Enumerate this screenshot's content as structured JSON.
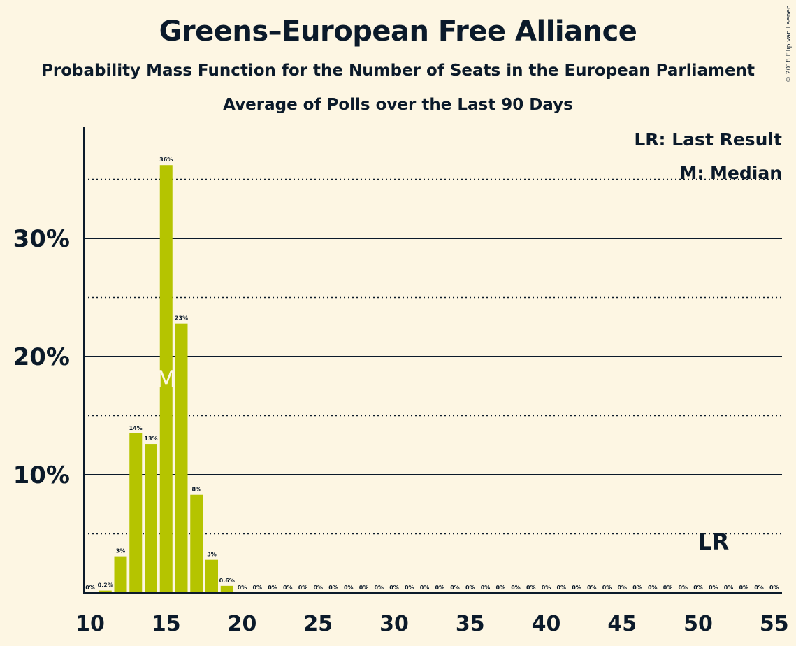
{
  "chart_data": {
    "type": "bar",
    "title": "Greens–European Free Alliance",
    "subtitle": "Probability Mass Function for the Number of Seats in the European Parliament",
    "subtitle2": "Average of Polls over the Last 90 Days",
    "copyright": "© 2018 Filip van Laenen",
    "legend": {
      "last_result": "LR: Last Result",
      "median": "M: Median"
    },
    "x": [
      10,
      11,
      12,
      13,
      14,
      15,
      16,
      17,
      18,
      19,
      20,
      21,
      22,
      23,
      24,
      25,
      26,
      27,
      28,
      29,
      30,
      31,
      32,
      33,
      34,
      35,
      36,
      37,
      38,
      39,
      40,
      41,
      42,
      43,
      44,
      45,
      46,
      47,
      48,
      49,
      50,
      51,
      52,
      53,
      54,
      55
    ],
    "values": [
      0,
      0.2,
      3.1,
      13.5,
      12.6,
      36.2,
      22.8,
      8.3,
      2.8,
      0.6,
      0,
      0,
      0,
      0,
      0,
      0,
      0,
      0,
      0,
      0,
      0,
      0,
      0,
      0,
      0,
      0,
      0,
      0,
      0,
      0,
      0,
      0,
      0,
      0,
      0,
      0,
      0,
      0,
      0,
      0,
      0,
      0,
      0,
      0,
      0,
      0
    ],
    "labels": [
      "0%",
      "0.2%",
      "3%",
      "14%",
      "13%",
      "36%",
      "23%",
      "8%",
      "3%",
      "0.6%",
      "0%",
      "0%",
      "0%",
      "0%",
      "0%",
      "0%",
      "0%",
      "0%",
      "0%",
      "0%",
      "0%",
      "0%",
      "0%",
      "0%",
      "0%",
      "0%",
      "0%",
      "0%",
      "0%",
      "0%",
      "0%",
      "0%",
      "0%",
      "0%",
      "0%",
      "0%",
      "0%",
      "0%",
      "0%",
      "0%",
      "0%",
      "0%",
      "0%",
      "0%",
      "0%",
      "0%"
    ],
    "xticks": [
      10,
      15,
      20,
      25,
      30,
      35,
      40,
      45,
      50,
      55
    ],
    "xtick_labels": [
      "10",
      "15",
      "20",
      "25",
      "30",
      "35",
      "40",
      "45",
      "50",
      "55"
    ],
    "yticks": [
      10,
      20,
      30
    ],
    "ytick_labels": [
      "10%",
      "20%",
      "30%"
    ],
    "dotted_gridlines": [
      5,
      15,
      25,
      35
    ],
    "ylim": [
      0,
      39.4
    ],
    "xlim": [
      9.8,
      55.5
    ],
    "median": 15,
    "median_label": "M",
    "last_result": 51,
    "last_result_label": "LR",
    "bar_color": "#b5c400",
    "grid": true,
    "legend_placement": "top-right"
  }
}
